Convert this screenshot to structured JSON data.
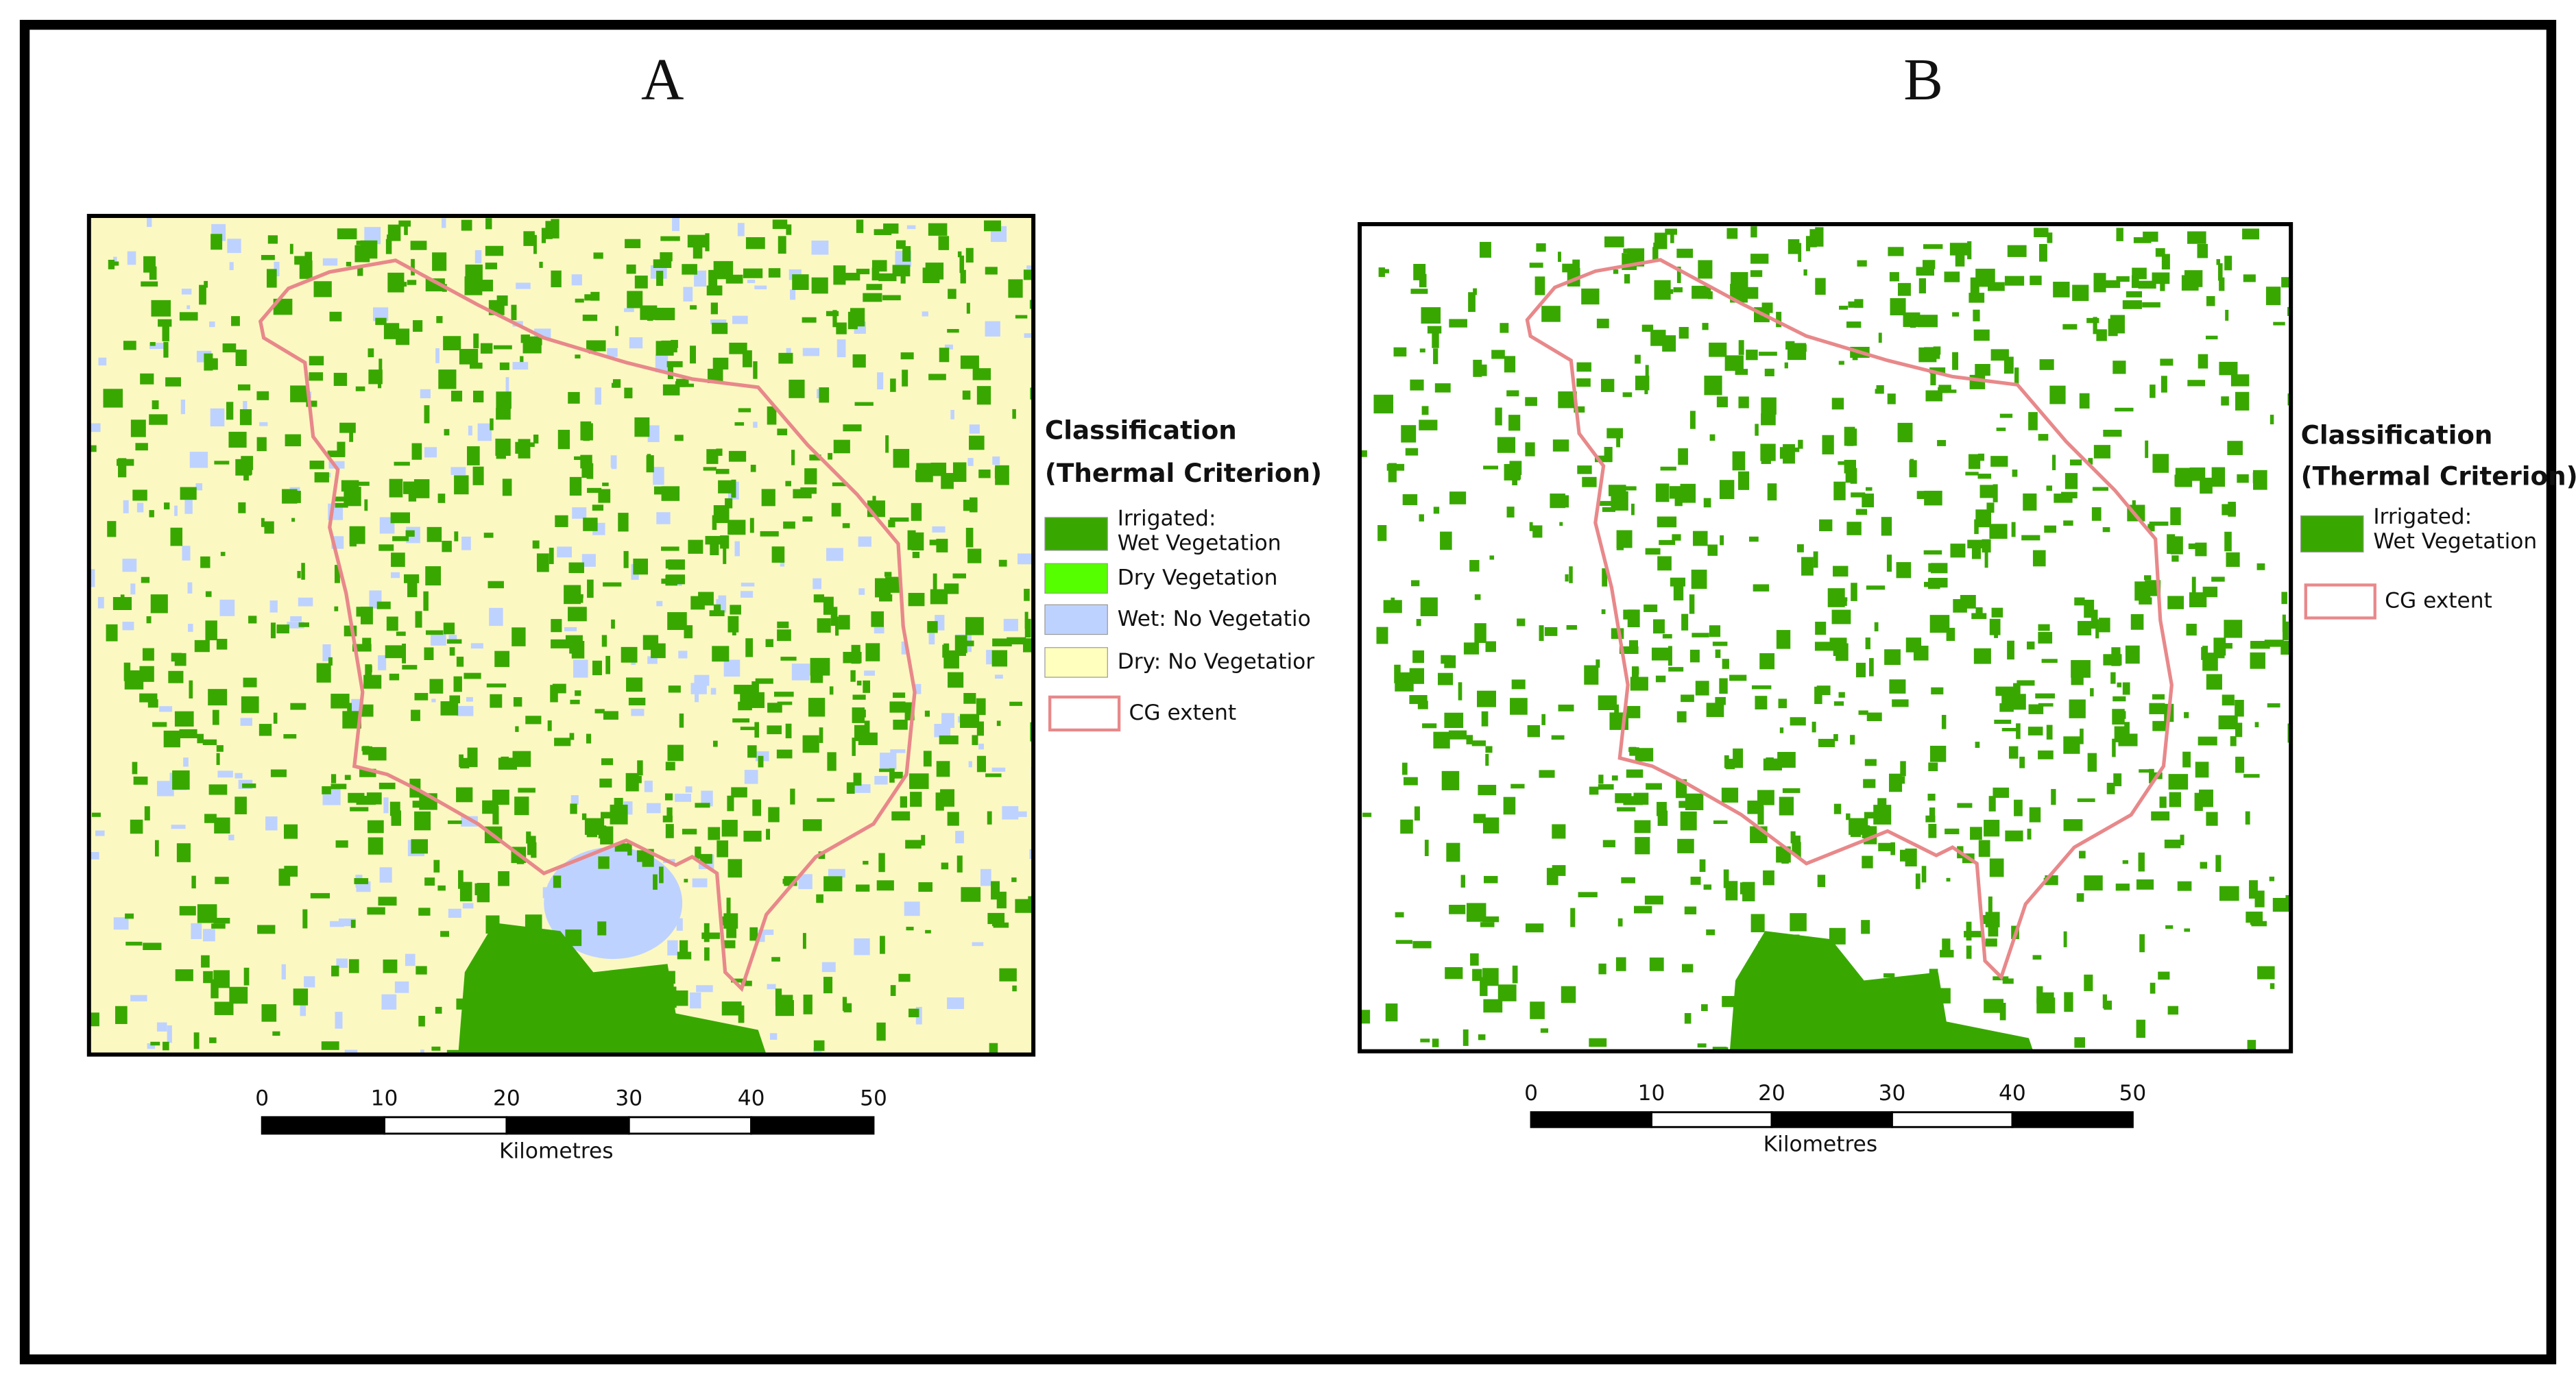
{
  "panels": [
    {
      "label": "A",
      "legend": {
        "title": [
          "Classification",
          "(Thermal Criterion)"
        ],
        "items": [
          {
            "lines": [
              "Irrigated:",
              "Wet Vegetation"
            ],
            "color": "#38a800"
          },
          {
            "lines": [
              "Dry Vegetation"
            ],
            "color": "#55ff00"
          },
          {
            "lines": [
              "Wet: No Vegetatio"
            ],
            "color": "#bed2ff"
          },
          {
            "lines": [
              "Dry: No Vegetatior"
            ],
            "color": "#ffffbe"
          },
          {
            "lines": [
              "CG extent"
            ],
            "color": "#e8888a",
            "outline": true
          }
        ]
      },
      "scale": {
        "ticks": [
          0,
          10,
          20,
          30,
          40,
          50
        ],
        "unit": "Kilometres"
      }
    },
    {
      "label": "B",
      "legend": {
        "title": [
          "Classification",
          "(Thermal Criterion)"
        ],
        "items": [
          {
            "lines": [
              "Irrigated:",
              "Wet Vegetation"
            ],
            "color": "#38a800"
          },
          {
            "lines": [
              "CG extent"
            ],
            "color": "#e8888a",
            "outline": true
          }
        ]
      },
      "scale": {
        "ticks": [
          0,
          10,
          20,
          30,
          40,
          50
        ],
        "unit": "Kilometres"
      }
    }
  ]
}
